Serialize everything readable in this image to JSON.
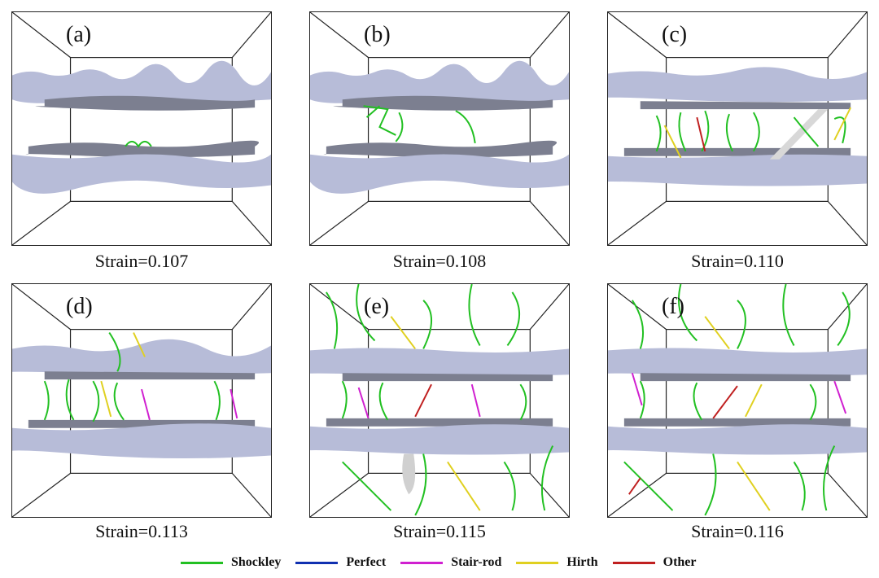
{
  "panels": [
    {
      "label": "(a)",
      "caption": "Strain=0.107"
    },
    {
      "label": "(b)",
      "caption": "Strain=0.108"
    },
    {
      "label": "(c)",
      "caption": "Strain=0.110"
    },
    {
      "label": "(d)",
      "caption": "Strain=0.113"
    },
    {
      "label": "(e)",
      "caption": "Strain=0.115"
    },
    {
      "label": "(f)",
      "caption": "Strain=0.116"
    }
  ],
  "legend": [
    {
      "label": "Shockley",
      "color": "#22c022"
    },
    {
      "label": "Perfect",
      "color": "#1030b0"
    },
    {
      "label": "Stair-rod",
      "color": "#d020d0"
    },
    {
      "label": "Hirth",
      "color": "#e0d020"
    },
    {
      "label": "Other",
      "color": "#c02020"
    }
  ],
  "colors": {
    "interface": "#b7bcd8",
    "interface_dark": "#7c7f90",
    "box": "#222222"
  }
}
